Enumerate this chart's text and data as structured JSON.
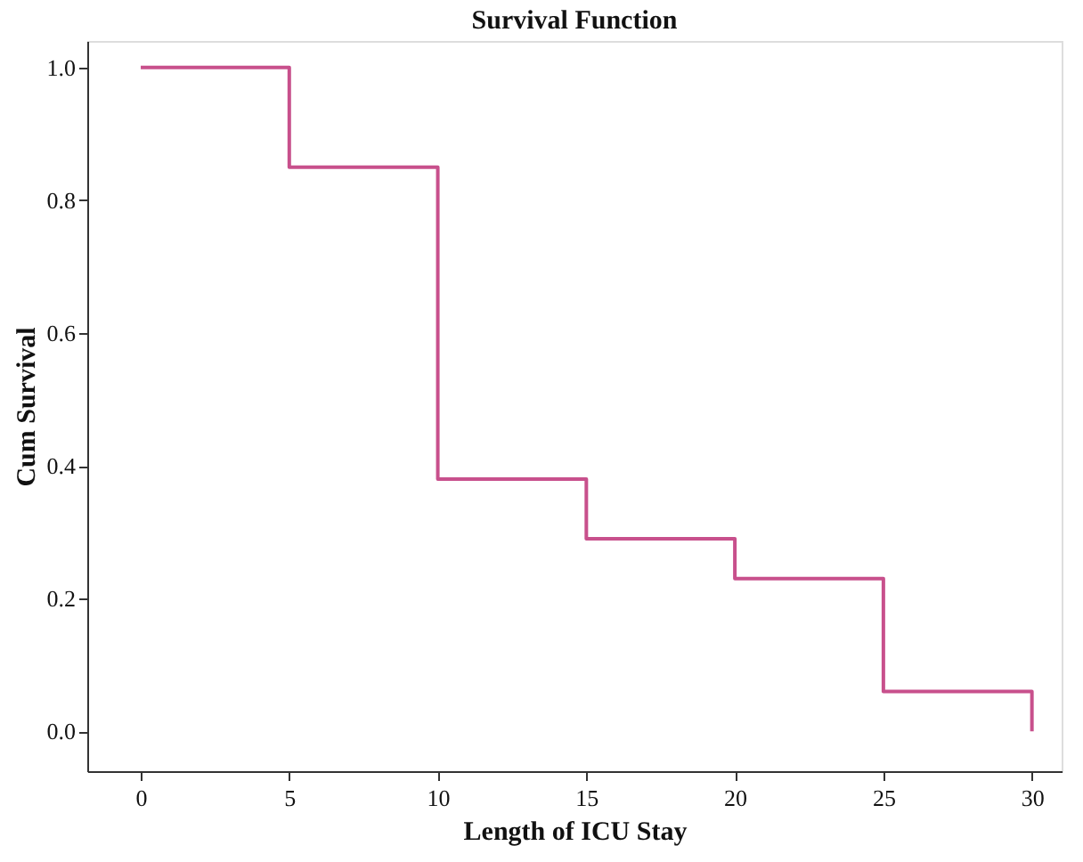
{
  "chart_data": {
    "type": "step",
    "title": "Survival Function",
    "xlabel": "Length of ICU Stay",
    "ylabel": "Cum Survival",
    "x": [
      0,
      5,
      10,
      15,
      20,
      25,
      30
    ],
    "series": [
      {
        "color": "#c8508c",
        "values": [
          1.0,
          0.85,
          0.38,
          0.29,
          0.23,
          0.06,
          0.0
        ]
      }
    ],
    "xlim": [
      -1.8,
      31
    ],
    "xticks": [
      0,
      5,
      10,
      15,
      20,
      25,
      30
    ],
    "ylim": [
      -0.06,
      1.04
    ],
    "yticks": [
      {
        "value": 0,
        "label": "0.0"
      },
      0.2,
      0.4,
      0.6,
      0.8,
      {
        "value": 1,
        "label": "1.0"
      }
    ],
    "grid": false,
    "marker": "none",
    "line_style": "solid"
  }
}
